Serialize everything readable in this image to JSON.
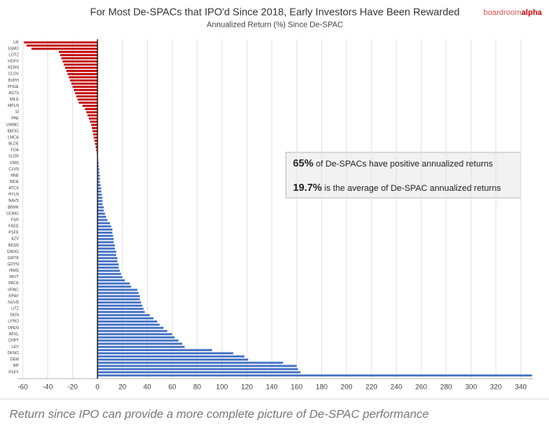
{
  "chart_data": {
    "type": "hbar",
    "title": "For Most De-SPACs that IPO'd Since 2018, Early Investors Have Been Rewarded",
    "subtitle": "Annualized Return (%) Since De-SPAC",
    "brand": {
      "main": "boardroom",
      "accent": "alpha"
    },
    "caption": "Return since IPO can provide a more complete picture of De-SPAC performance",
    "annotations": [
      {
        "bold": "65%",
        "text": " of De-SPACs have positive annualized returns"
      },
      {
        "bold": "19.7%",
        "text": " is the average of De-SPAC annualized returns"
      }
    ],
    "color": "#4472c4",
    "negative_color": "#c00000",
    "grid": true,
    "xlim": [
      -60,
      350
    ],
    "xticks": [
      -60,
      -40,
      -20,
      0,
      20,
      40,
      60,
      80,
      100,
      120,
      140,
      160,
      180,
      200,
      220,
      240,
      260,
      280,
      300,
      320,
      340
    ],
    "categories": [
      "UK",
      null,
      "SSMD",
      null,
      "LOTZ",
      null,
      "HOFV",
      null,
      "KERN",
      null,
      "CLOV",
      null,
      "BVPH",
      null,
      "PHGE",
      null,
      "ASTS",
      null,
      "MILE",
      null,
      "MPLN",
      null,
      "SI",
      null,
      "PAE",
      null,
      "UWMC",
      null,
      "BBOG",
      null,
      "LMCA",
      null,
      "BLDE",
      null,
      "FOA",
      null,
      "VLDR",
      null,
      "DMS",
      null,
      "CLVN",
      null,
      "HNE",
      null,
      "BIDE",
      null,
      "ATCX",
      null,
      "HYLN",
      null,
      "NAVS",
      null,
      "BBMK",
      null,
      "GOMG",
      null,
      "FSR",
      null,
      "FREE",
      null,
      "PSFE",
      null,
      "AZV",
      null,
      "BKSR",
      null,
      "GNOG",
      null,
      "GMTK",
      null,
      "GDYN",
      null,
      "HIMS",
      null,
      "IMVT",
      null,
      "PACK",
      null,
      "VRNC",
      null,
      "RPAY",
      null,
      "NUVB",
      null,
      "UTZ",
      null,
      "SKIN",
      null,
      "LPRO",
      null,
      "OPEN",
      null,
      "APXL",
      null,
      "CHPT",
      null,
      "LEV",
      null,
      "DKNG",
      null,
      "DEM",
      null,
      "MP",
      null,
      "PSFY",
      null
    ],
    "values": [
      -59,
      -57,
      -53,
      -31,
      -30,
      -29,
      -28,
      -27,
      -26,
      -25,
      -24,
      -23,
      -22,
      -21,
      -20,
      -19,
      -18,
      -17,
      -16,
      -15,
      -12,
      -10,
      -9,
      -8,
      -7,
      -6,
      -5,
      -4.5,
      -4,
      -3.5,
      -3,
      -2.5,
      -2,
      -1.5,
      -1,
      -0.5,
      0,
      0.5,
      1,
      1,
      1.5,
      1.5,
      2,
      2,
      2,
      2.5,
      3,
      3,
      3.5,
      4,
      4,
      4,
      5,
      5,
      6,
      7,
      8,
      10,
      11,
      12,
      12,
      12.5,
      13,
      13,
      14,
      14,
      15,
      15,
      16,
      16,
      17,
      17,
      18,
      19,
      20,
      22,
      26,
      27,
      32,
      33,
      34,
      34,
      35,
      36,
      37,
      38,
      42,
      45,
      48,
      50,
      53,
      56,
      60,
      62,
      65,
      68,
      70,
      92,
      109,
      118,
      121,
      149,
      160,
      161,
      163,
      349
    ]
  }
}
